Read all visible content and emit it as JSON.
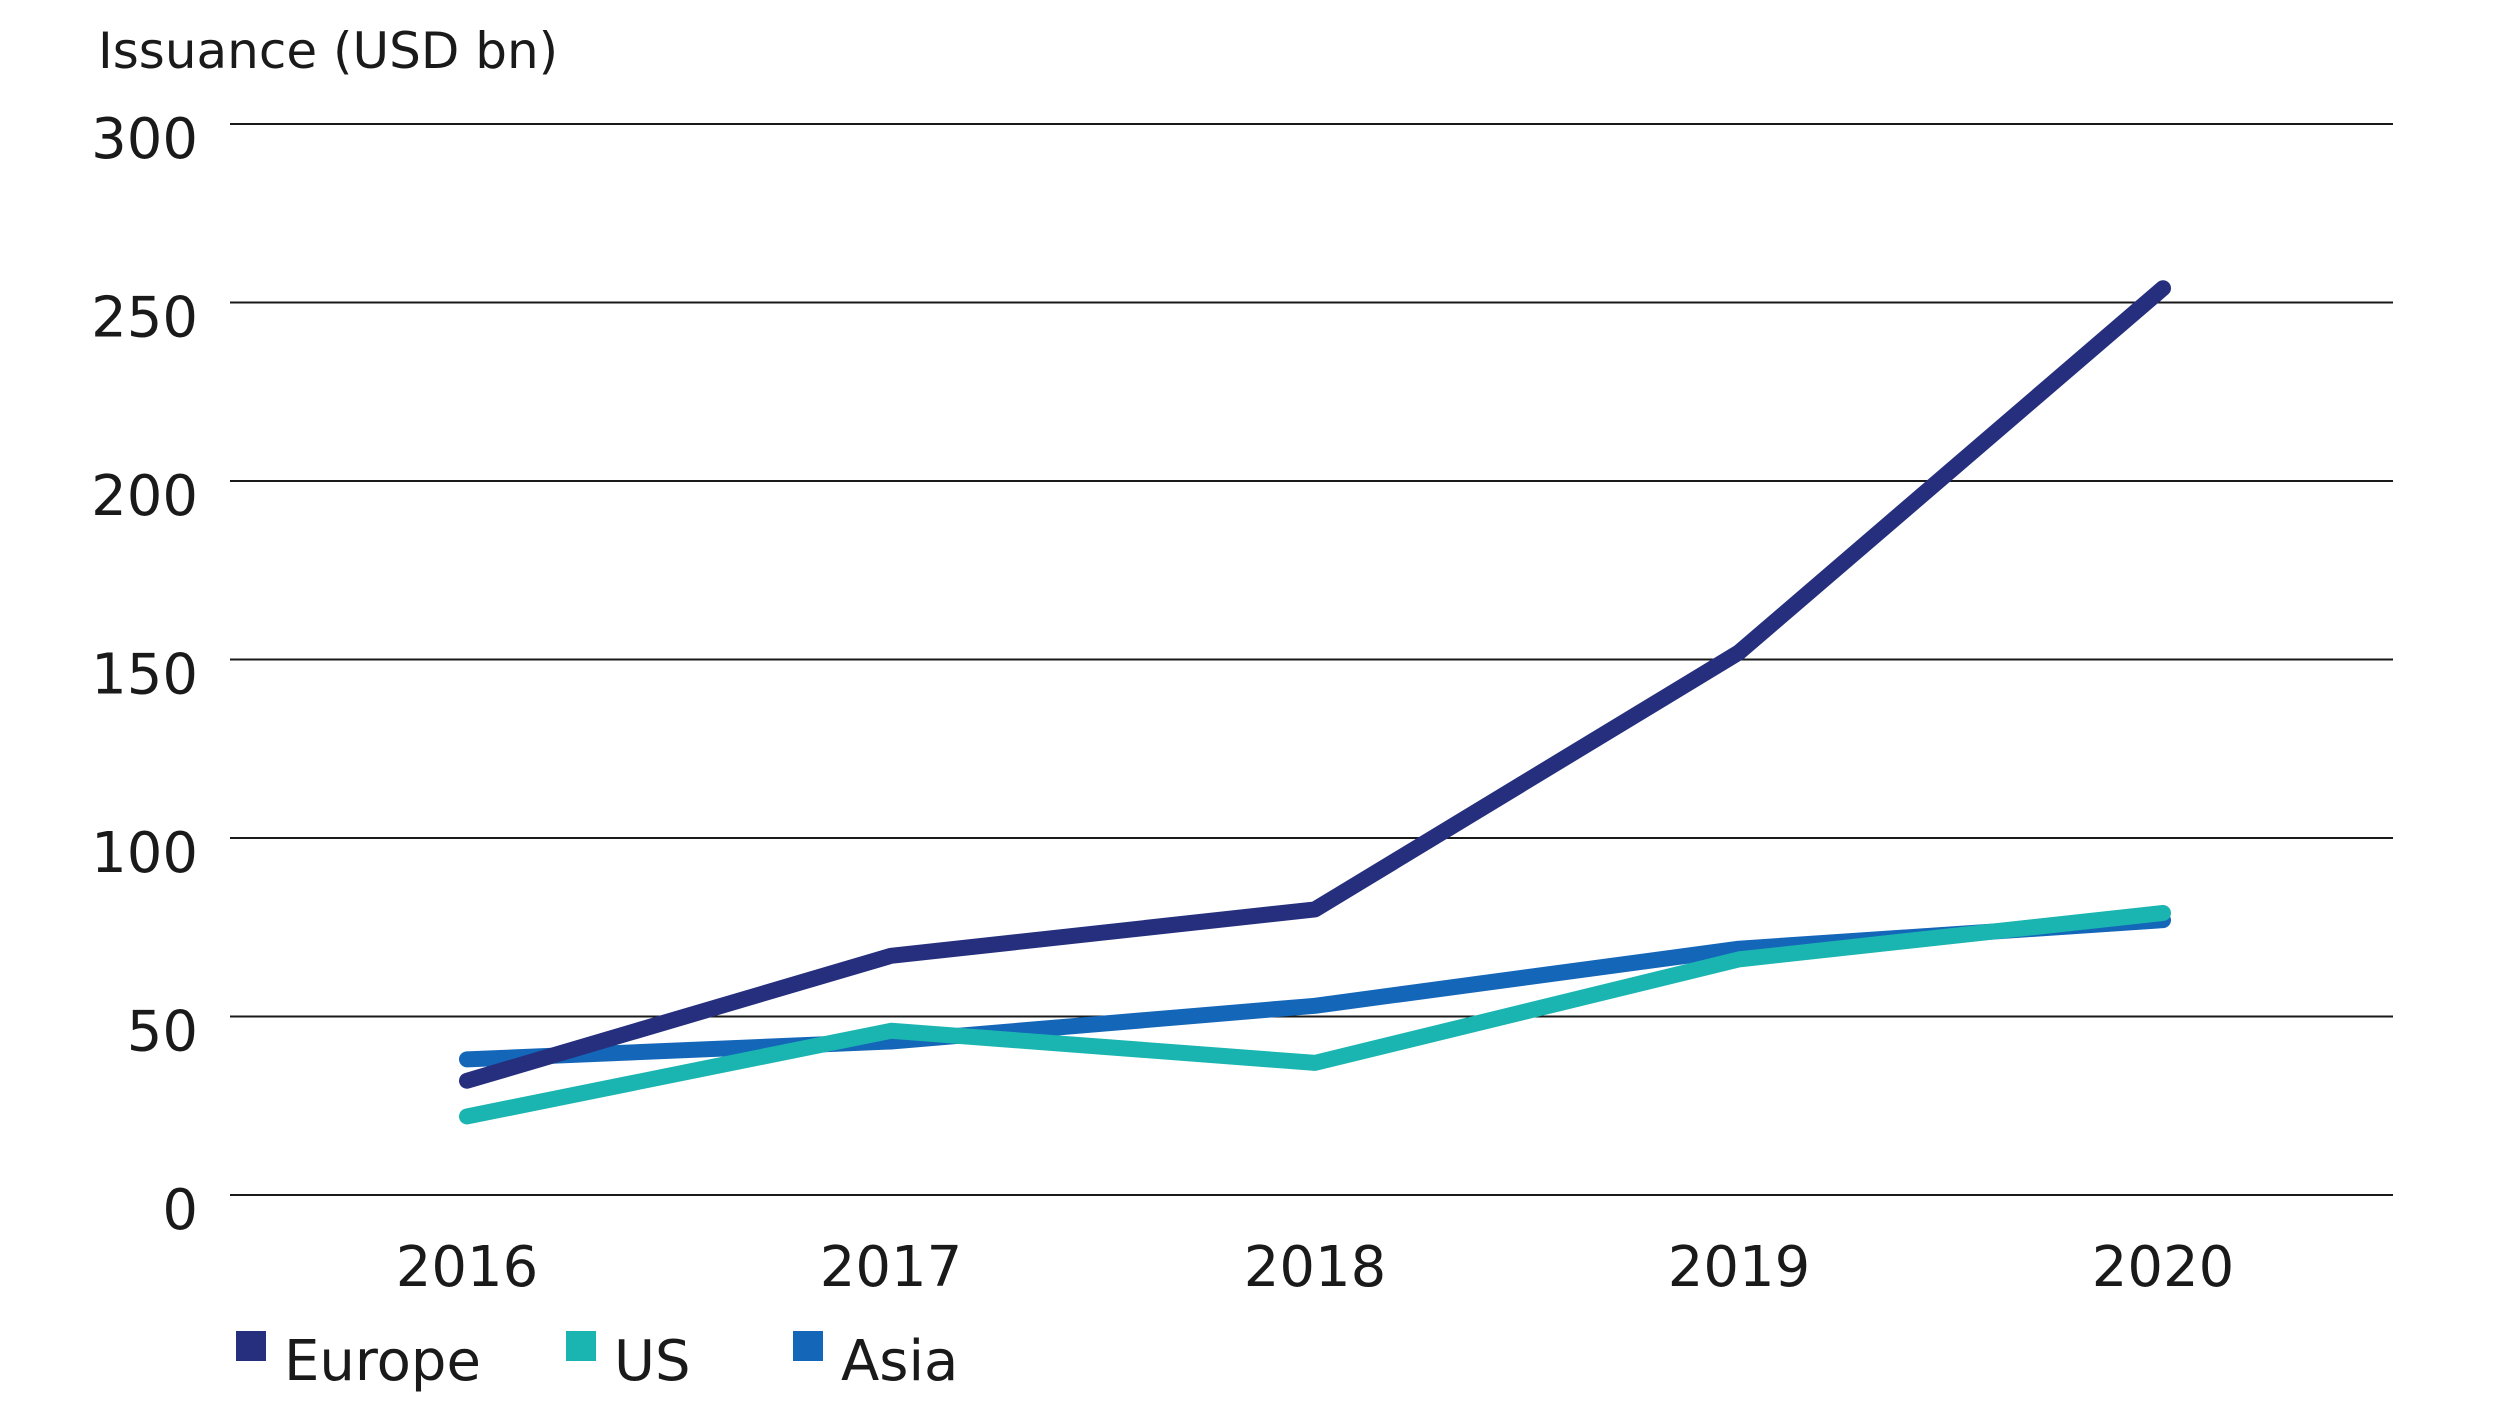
{
  "chart_data": {
    "type": "line",
    "title": "",
    "ylabel": "Issuance (USD bn)",
    "xlabel": "",
    "categories": [
      "2016",
      "2017",
      "2018",
      "2019",
      "2020"
    ],
    "ylim": [
      0,
      300
    ],
    "yticks": [
      0,
      50,
      100,
      150,
      200,
      250,
      300
    ],
    "grid": true,
    "legend_position": "bottom-left",
    "series": [
      {
        "name": "Europe",
        "color": "#252f7e",
        "values": [
          32,
          67,
          80,
          152,
          254
        ]
      },
      {
        "name": "US",
        "color": "#1ab5b0",
        "values": [
          22,
          46,
          37,
          66,
          79
        ]
      },
      {
        "name": "Asia",
        "color": "#1466b8",
        "values": [
          38,
          43,
          53,
          69,
          77
        ]
      }
    ]
  }
}
